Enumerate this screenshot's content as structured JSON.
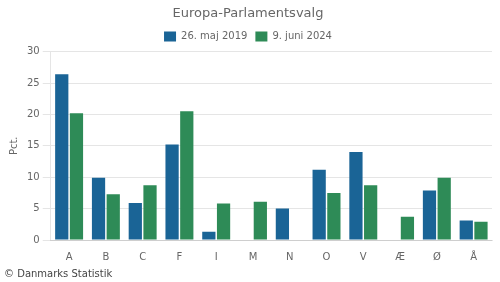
{
  "chart_data": {
    "type": "bar",
    "title": "Europa-Parlamentsvalg",
    "categories": [
      "A",
      "B",
      "C",
      "F",
      "I",
      "M",
      "N",
      "O",
      "V",
      "Æ",
      "Ø",
      "Å"
    ],
    "series": [
      {
        "name": "26. maj 2019",
        "color": "#1a6496",
        "values": [
          26.4,
          9.9,
          5.9,
          15.2,
          1.3,
          0,
          5.0,
          11.2,
          14.0,
          0,
          7.9,
          3.1
        ]
      },
      {
        "name": "9. juni 2024",
        "color": "#2e8b57",
        "values": [
          20.2,
          7.3,
          8.7,
          20.5,
          5.8,
          6.1,
          0,
          7.5,
          8.7,
          3.7,
          9.9,
          2.9
        ]
      }
    ],
    "ylabel": "Pct.",
    "ylim": [
      0,
      30
    ],
    "yticks": [
      0,
      5,
      10,
      15,
      20,
      25,
      30
    ],
    "grid": true,
    "legend": "top",
    "annotations": [
      "© Danmarks Statistik"
    ]
  }
}
